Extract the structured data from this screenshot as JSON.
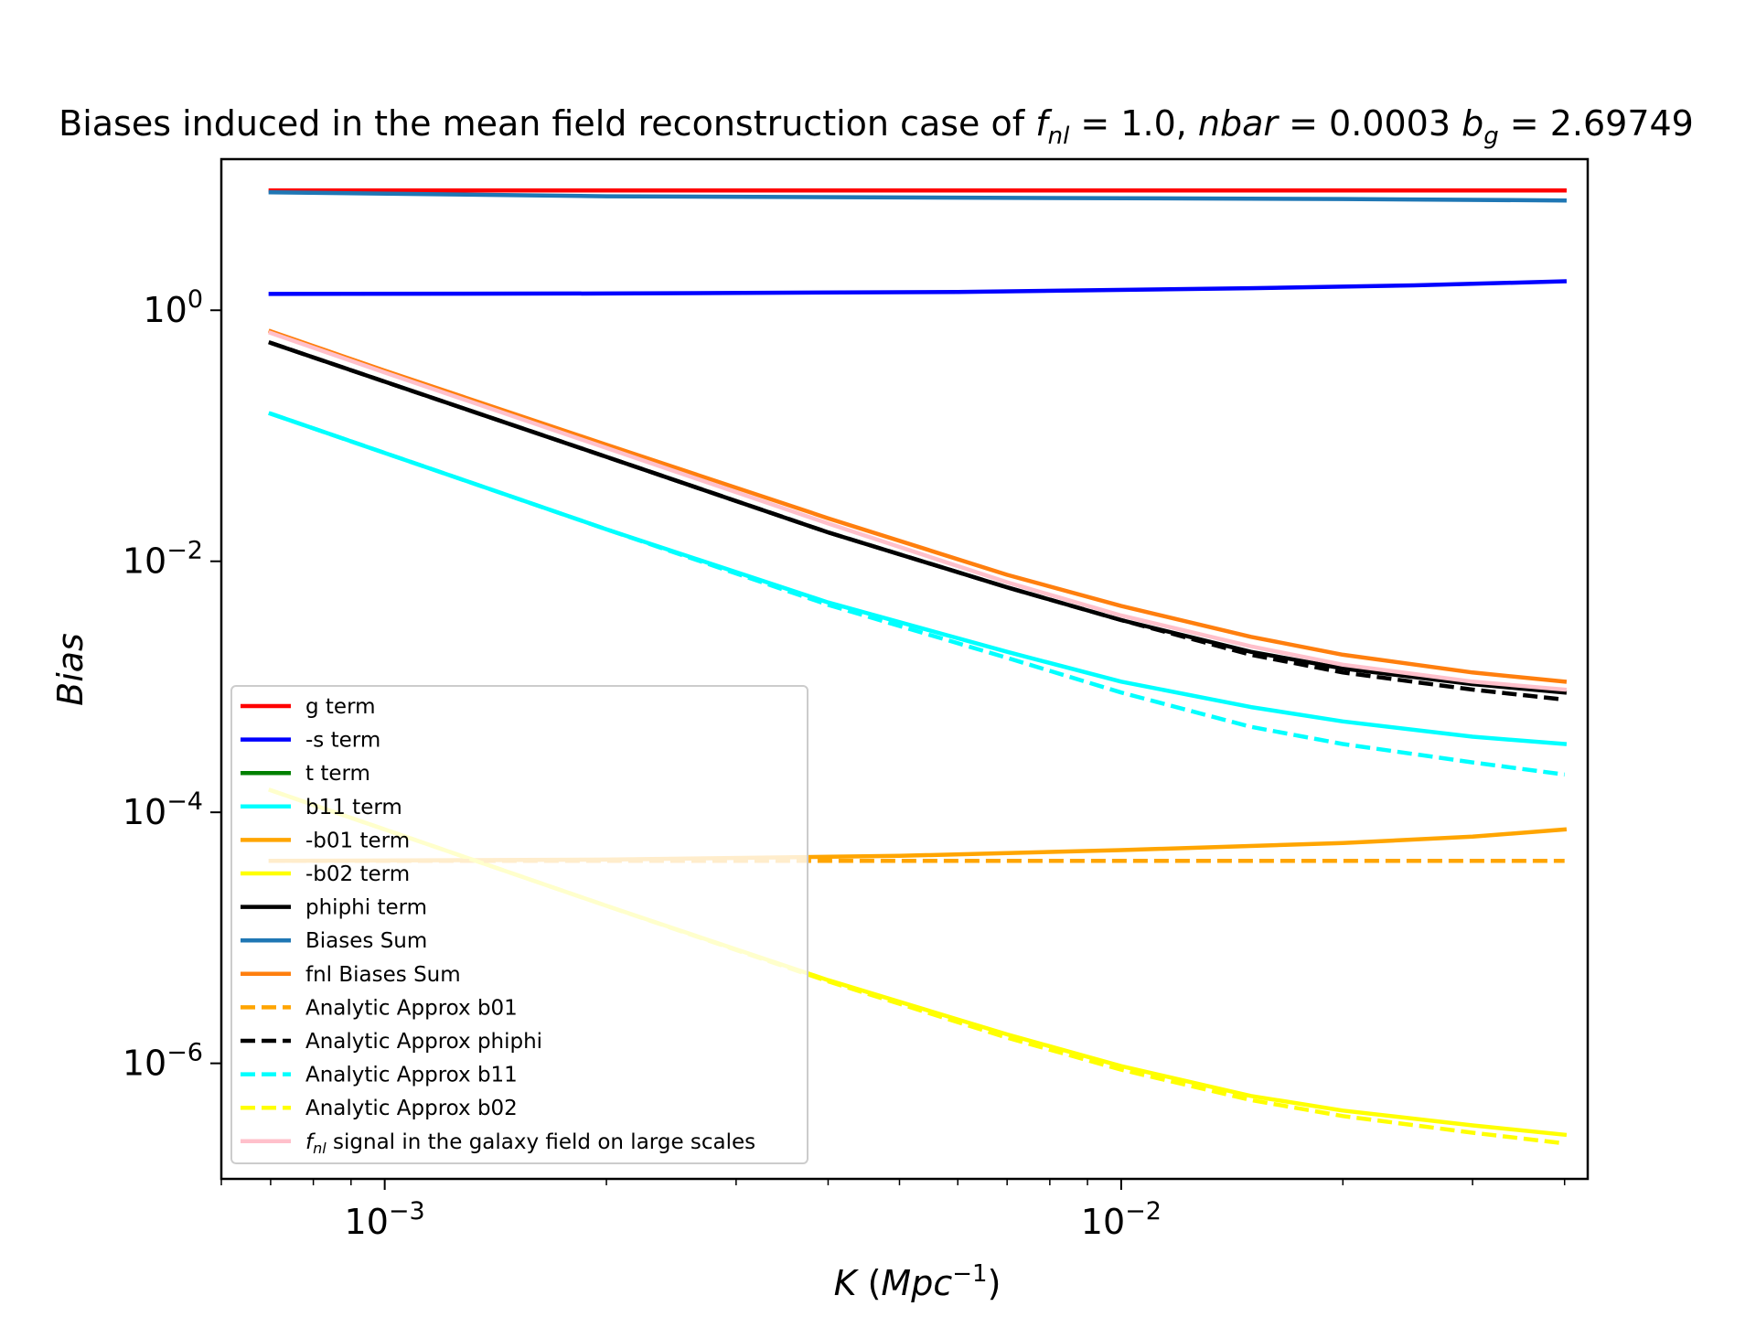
{
  "chart_data": {
    "type": "line",
    "title": "Biases induced in the mean field reconstruction case of f_nl = 1.0, nbar = 0.0003 b_g = 2.69749",
    "title_parts": {
      "prefix": "Biases induced in the mean field reconstruction case of ",
      "f": "f",
      "nl": "nl",
      "fnl_value": " = 1.0, ",
      "nbar": "nbar",
      "nbar_value": " = 0.0003 ",
      "b": "b",
      "g": "g",
      "bg_value": " = 2.69749"
    },
    "xlabel": "K (Mpc⁻¹)",
    "xlabel_parts": {
      "K": "K",
      "open": " (",
      "unit": "Mpc",
      "exp": "−1",
      "close": ")"
    },
    "ylabel": "Bias",
    "x_scale": "log",
    "y_scale": "log",
    "xlim": [
      0.0006,
      0.043
    ],
    "ylim": [
      1.2e-07,
      16
    ],
    "x_ticks": [
      {
        "value": 0.001,
        "base": "10",
        "exp": "−3"
      },
      {
        "value": 0.01,
        "base": "10",
        "exp": "−2"
      }
    ],
    "y_ticks": [
      {
        "value": 1e-06,
        "base": "10",
        "exp": "−6"
      },
      {
        "value": 0.0001,
        "base": "10",
        "exp": "−4"
      },
      {
        "value": 0.01,
        "base": "10",
        "exp": "−2"
      },
      {
        "value": 1,
        "base": "10",
        "exp": "0"
      }
    ],
    "legend_position": "lower-left",
    "grid": false,
    "series": [
      {
        "name": "g term",
        "color": "#ff0000",
        "dash": "solid",
        "x": [
          0.0007,
          0.002,
          0.006,
          0.02,
          0.04
        ],
        "y": [
          9.0,
          9.0,
          9.0,
          9.0,
          9.0
        ]
      },
      {
        "name": "-s term",
        "color": "#0000ff",
        "dash": "solid",
        "x": [
          0.0007,
          0.002,
          0.006,
          0.015,
          0.025,
          0.04
        ],
        "y": [
          1.35,
          1.36,
          1.4,
          1.5,
          1.58,
          1.7
        ]
      },
      {
        "name": "t term",
        "color": "#008000",
        "dash": "solid",
        "x": [],
        "y": []
      },
      {
        "name": "b11 term",
        "color": "#00ffff",
        "dash": "solid",
        "x": [
          0.0007,
          0.001,
          0.002,
          0.004,
          0.007,
          0.01,
          0.015,
          0.02,
          0.03,
          0.04
        ],
        "y": [
          0.15,
          0.073,
          0.018,
          0.0047,
          0.0019,
          0.0011,
          0.00069,
          0.00053,
          0.0004,
          0.00035
        ]
      },
      {
        "name": "-b01 term",
        "color": "#ffa500",
        "dash": "solid",
        "x": [
          0.0007,
          0.002,
          0.005,
          0.01,
          0.02,
          0.03,
          0.04
        ],
        "y": [
          4.1e-05,
          4.2e-05,
          4.5e-05,
          5e-05,
          5.7e-05,
          6.4e-05,
          7.3e-05
        ]
      },
      {
        "name": "-b02 term",
        "color": "#ffff00",
        "dash": "solid",
        "x": [
          0.0007,
          0.001,
          0.002,
          0.004,
          0.007,
          0.01,
          0.015,
          0.02,
          0.03,
          0.04
        ],
        "y": [
          0.00015,
          7.3e-05,
          1.8e-05,
          4.6e-06,
          1.7e-06,
          9.5e-07,
          5.5e-07,
          4.2e-07,
          3.2e-07,
          2.7e-07
        ]
      },
      {
        "name": "phiphi term",
        "color": "#000000",
        "dash": "solid",
        "x": [
          0.0007,
          0.001,
          0.002,
          0.004,
          0.007,
          0.01,
          0.015,
          0.02,
          0.03,
          0.04
        ],
        "y": [
          0.55,
          0.27,
          0.068,
          0.017,
          0.0062,
          0.0034,
          0.0019,
          0.0014,
          0.00105,
          0.0009
        ]
      },
      {
        "name": "Biases Sum",
        "color": "#1f77b4",
        "dash": "solid",
        "x": [
          0.0007,
          0.002,
          0.006,
          0.02,
          0.04
        ],
        "y": [
          8.7,
          8.1,
          7.9,
          7.7,
          7.5
        ]
      },
      {
        "name": "fnl Biases Sum",
        "color": "#ff7f0e",
        "dash": "solid",
        "x": [
          0.0007,
          0.001,
          0.002,
          0.004,
          0.007,
          0.01,
          0.015,
          0.02,
          0.03,
          0.04
        ],
        "y": [
          0.68,
          0.33,
          0.085,
          0.022,
          0.0078,
          0.0044,
          0.0025,
          0.0018,
          0.0013,
          0.0011
        ]
      },
      {
        "name": "Analytic Approx b01",
        "color": "#ffa500",
        "dash": "dashed",
        "x": [
          0.0007,
          0.04
        ],
        "y": [
          4.1e-05,
          4.1e-05
        ]
      },
      {
        "name": "Analytic Approx phiphi",
        "color": "#000000",
        "dash": "dashed",
        "x": [
          0.0007,
          0.001,
          0.002,
          0.004,
          0.007,
          0.01,
          0.015,
          0.02,
          0.03,
          0.04
        ],
        "y": [
          0.55,
          0.27,
          0.068,
          0.017,
          0.0062,
          0.0034,
          0.0018,
          0.0013,
          0.00095,
          0.00079
        ]
      },
      {
        "name": "Analytic Approx b11",
        "color": "#00ffff",
        "dash": "dashed",
        "x": [
          0.0007,
          0.001,
          0.002,
          0.004,
          0.007,
          0.01,
          0.015,
          0.02,
          0.03,
          0.04
        ],
        "y": [
          0.15,
          0.073,
          0.018,
          0.0045,
          0.0017,
          0.0009,
          0.00048,
          0.00035,
          0.00025,
          0.0002
        ]
      },
      {
        "name": "Analytic Approx b02",
        "color": "#ffff00",
        "dash": "dashed",
        "x": [
          0.0007,
          0.001,
          0.002,
          0.004,
          0.007,
          0.01,
          0.015,
          0.02,
          0.03,
          0.04
        ],
        "y": [
          0.00015,
          7.3e-05,
          1.8e-05,
          4.5e-06,
          1.6e-06,
          8.9e-07,
          5.1e-07,
          3.8e-07,
          2.8e-07,
          2.3e-07
        ]
      },
      {
        "name": "f_nl signal in the galaxy field on large scales",
        "color": "#ffc0cb",
        "dash": "solid",
        "x": [
          0.0007,
          0.001,
          0.002,
          0.004,
          0.007,
          0.01,
          0.015,
          0.02,
          0.03,
          0.04
        ],
        "y": [
          0.66,
          0.32,
          0.08,
          0.02,
          0.0068,
          0.0037,
          0.0021,
          0.0015,
          0.0011,
          0.00095
        ],
        "legend_label_parts": {
          "f": "f",
          "nl": "nl",
          "rest": " signal in the galaxy field on large scales"
        }
      }
    ]
  }
}
